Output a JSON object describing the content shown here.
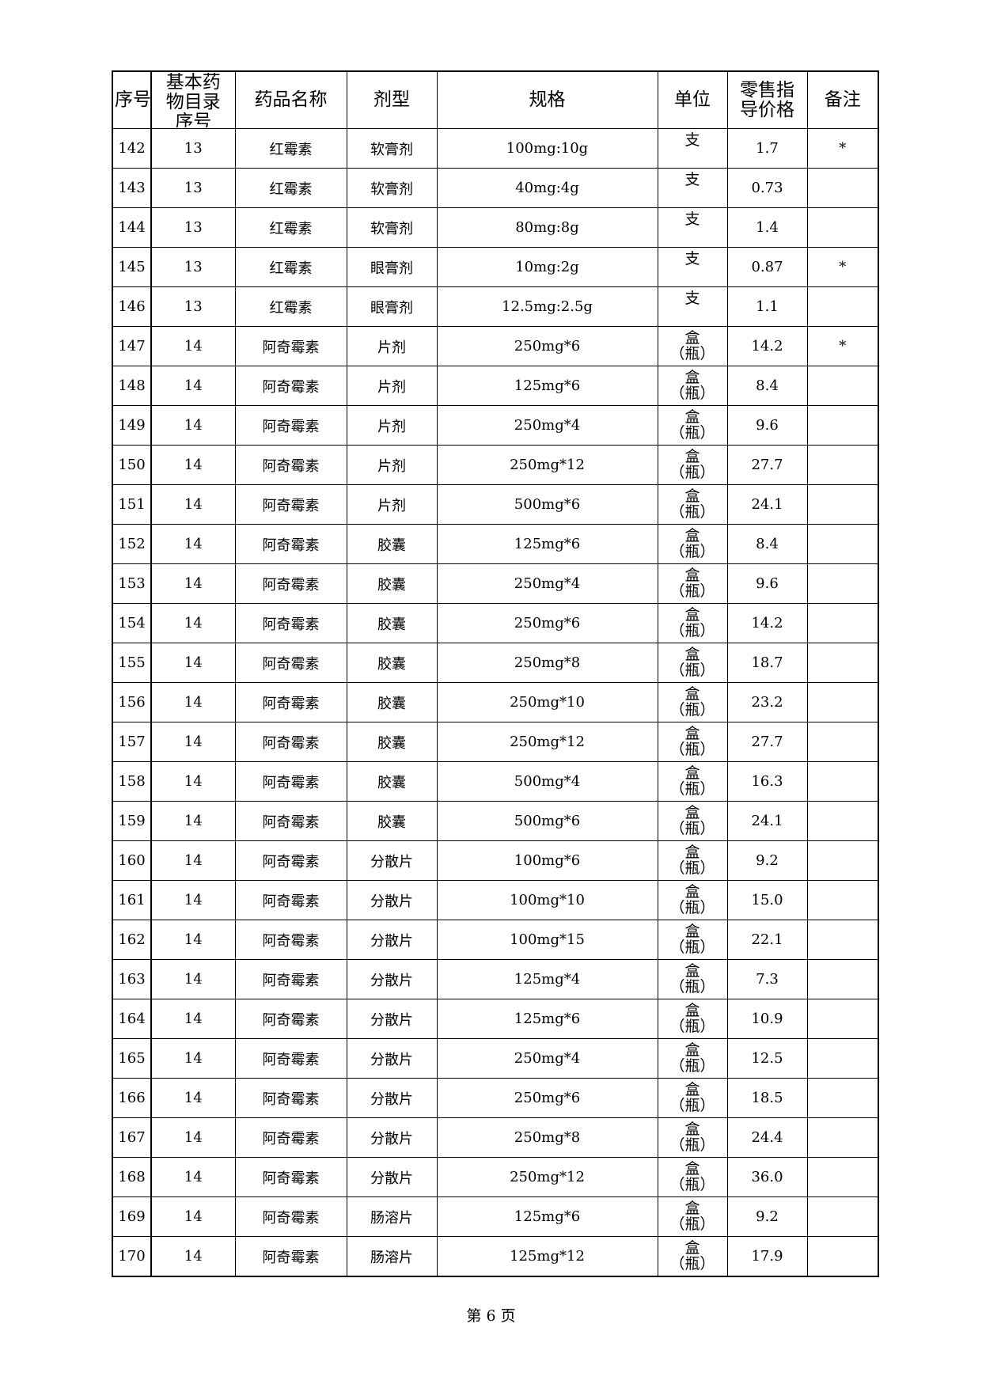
{
  "table": {
    "header": [
      "序号",
      "基本药物目录序号",
      "药品名称",
      "剂型",
      "规格",
      "单位",
      "零售指导价格",
      "备注"
    ],
    "rows": [
      [
        "142",
        "13",
        "红霉素",
        "软膏剂",
        "100mg:10g",
        "支",
        "1.7",
        "*"
      ],
      [
        "143",
        "13",
        "红霉素",
        "软膏剂",
        "40mg:4g",
        "支",
        "0.73"
      ],
      [
        "144",
        "13",
        "红霉素",
        "软膏剂",
        "80mg:8g",
        "支",
        "1.4"
      ],
      [
        "145",
        "13",
        "红霉素",
        "眼膏剂",
        "10mg:2g",
        "支",
        "0.87",
        "*"
      ],
      [
        "146",
        "13",
        "红霉素",
        "眼膏剂",
        "12.5mg:2.5g",
        "支",
        "1.1"
      ],
      [
        "147",
        "14",
        "阿奇霉素",
        "片剂",
        "250mg*6",
        "盒（瓶）",
        "14.2",
        "*"
      ],
      [
        "148",
        "14",
        "阿奇霉素",
        "片剂",
        "125mg*6",
        "盒（瓶）",
        "8.4"
      ],
      [
        "149",
        "14",
        "阿奇霉素",
        "片剂",
        "250mg*4",
        "盒（瓶）",
        "9.6"
      ],
      [
        "150",
        "14",
        "阿奇霉素",
        "片剂",
        "250mg*12",
        "盒（瓶）",
        "27.7"
      ],
      [
        "151",
        "14",
        "阿奇霉素",
        "片剂",
        "500mg*6",
        "盒（瓶）",
        "24.1"
      ],
      [
        "152",
        "14",
        "阿奇霉素",
        "胶囊",
        "125mg*6",
        "盒（瓶）",
        "8.4"
      ],
      [
        "153",
        "14",
        "阿奇霉素",
        "胶囊",
        "250mg*4",
        "盒（瓶）",
        "9.6"
      ],
      [
        "154",
        "14",
        "阿奇霉素",
        "胶囊",
        "250mg*6",
        "盒（瓶）",
        "14.2"
      ],
      [
        "155",
        "14",
        "阿奇霉素",
        "胶囊",
        "250mg*8",
        "盒（瓶）",
        "18.7"
      ],
      [
        "156",
        "14",
        "阿奇霉素",
        "胶囊",
        "250mg*10",
        "盒（瓶）",
        "23.2"
      ],
      [
        "157",
        "14",
        "阿奇霉素",
        "胶囊",
        "250mg*12",
        "盒（瓶）",
        "27.7"
      ],
      [
        "158",
        "14",
        "阿奇霉素",
        "胶囊",
        "500mg*4",
        "盒（瓶）",
        "16.3"
      ],
      [
        "159",
        "14",
        "阿奇霉素",
        "胶囊",
        "500mg*6",
        "盒（瓶）",
        "24.1"
      ],
      [
        "160",
        "14",
        "阿奇霉素",
        "分散片",
        "100mg*6",
        "盒（瓶）",
        "9.2"
      ],
      [
        "161",
        "14",
        "阿奇霉素",
        "分散片",
        "100mg*10",
        "盒（瓶）",
        "15.0"
      ],
      [
        "162",
        "14",
        "阿奇霉素",
        "分散片",
        "100mg*15",
        "盒（瓶）",
        "22.1"
      ],
      [
        "163",
        "14",
        "阿奇霉素",
        "分散片",
        "125mg*4",
        "盒（瓶）",
        "7.3"
      ],
      [
        "164",
        "14",
        "阿奇霉素",
        "分散片",
        "125mg*6",
        "盒（瓶）",
        "10.9"
      ],
      [
        "165",
        "14",
        "阿奇霉素",
        "分散片",
        "250mg*4",
        "盒（瓶）",
        "12.5"
      ],
      [
        "166",
        "14",
        "阿奇霉素",
        "分散片",
        "250mg*6",
        "盒（瓶）",
        "18.5"
      ],
      [
        "167",
        "14",
        "阿奇霉素",
        "分散片",
        "250mg*8",
        "盒（瓶）",
        "24.4"
      ],
      [
        "168",
        "14",
        "阿奇霉素",
        "分散片",
        "250mg*12",
        "盒（瓶）",
        "36.0"
      ],
      [
        "169",
        "14",
        "阿奇霉素",
        "肠溶片",
        "125mg*6",
        "盒（瓶）",
        "9.2"
      ],
      [
        "170",
        "14",
        "阿奇霉素",
        "肠溶片",
        "125mg*12",
        "盒（瓶）",
        "17.9"
      ]
    ]
  },
  "footer": {
    "page": "第 6 页"
  }
}
